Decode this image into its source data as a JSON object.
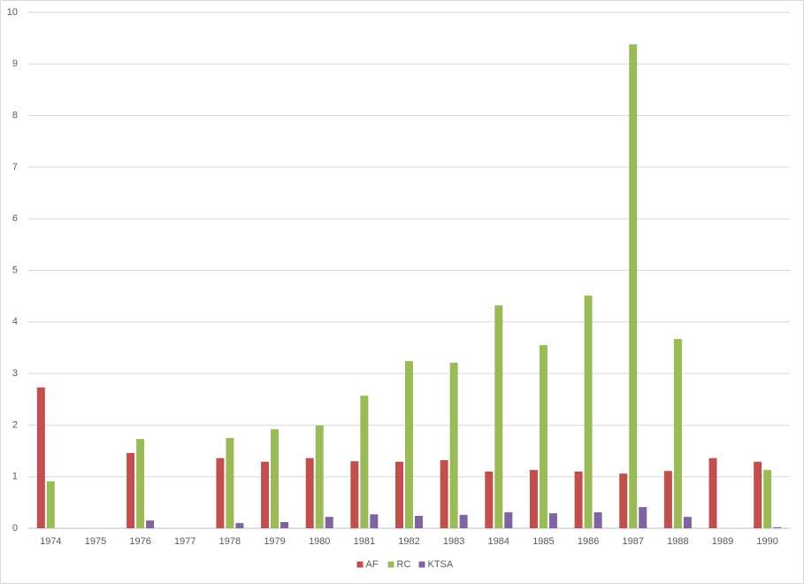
{
  "chart_data": {
    "type": "bar",
    "categories": [
      "1974",
      "1975",
      "1976",
      "1977",
      "1978",
      "1979",
      "1980",
      "1981",
      "1982",
      "1983",
      "1984",
      "1985",
      "1986",
      "1987",
      "1988",
      "1989",
      "1990"
    ],
    "series": [
      {
        "name": "AF",
        "color": "#c0504d",
        "values": [
          2.73,
          null,
          1.46,
          null,
          1.36,
          1.29,
          1.36,
          1.3,
          1.29,
          1.32,
          1.1,
          1.13,
          1.1,
          1.06,
          1.11,
          1.36,
          1.29
        ]
      },
      {
        "name": "RC",
        "color": "#9bbb59",
        "values": [
          0.91,
          null,
          1.73,
          null,
          1.75,
          1.92,
          1.99,
          2.57,
          3.24,
          3.21,
          4.32,
          3.55,
          4.51,
          9.38,
          3.67,
          null,
          1.13
        ]
      },
      {
        "name": "KTSA",
        "color": "#8064a2",
        "values": [
          null,
          null,
          0.15,
          null,
          0.1,
          0.12,
          0.22,
          0.27,
          0.24,
          0.26,
          0.31,
          0.29,
          0.31,
          0.41,
          0.22,
          null,
          0.02
        ]
      }
    ],
    "ylim": [
      0,
      10
    ],
    "yticks": [
      0,
      1,
      2,
      3,
      4,
      5,
      6,
      7,
      8,
      9,
      10
    ],
    "grid": true,
    "legend": "bottom"
  }
}
